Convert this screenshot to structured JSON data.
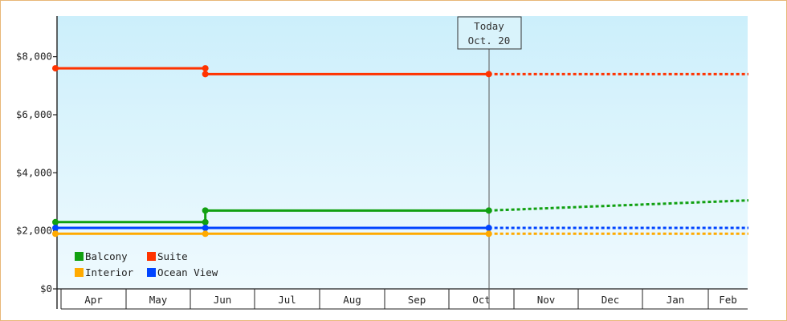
{
  "chart_data": {
    "type": "line",
    "title": "",
    "xlabel": "",
    "ylabel": "",
    "ylim": [
      0,
      9400
    ],
    "y_ticks": [
      {
        "value": 0,
        "label": "$0"
      },
      {
        "value": 2000,
        "label": "$2,000"
      },
      {
        "value": 4000,
        "label": "$4,000"
      },
      {
        "value": 6000,
        "label": "$6,000"
      },
      {
        "value": 8000,
        "label": "$8,000"
      }
    ],
    "months": [
      "Apr",
      "May",
      "Jun",
      "Jul",
      "Aug",
      "Sep",
      "Oct",
      "Nov",
      "Dec",
      "Jan",
      "Feb"
    ],
    "today": {
      "line1": "Today",
      "line2": "Oct. 20"
    },
    "legend_position": "bottom-left",
    "legend": [
      {
        "label": "Balcony",
        "color": "#11a011"
      },
      {
        "label": "Suite",
        "color": "#ff3300"
      },
      {
        "label": "Interior",
        "color": "#ffaa00"
      },
      {
        "label": "Ocean View",
        "color": "#0044ff"
      }
    ],
    "series": [
      {
        "name": "Suite",
        "color": "#ff3300",
        "actual": [
          [
            "Apr 1",
            7600
          ],
          [
            "Jun 8",
            7600
          ],
          [
            "Jun 8",
            7400
          ],
          [
            "Oct 20",
            7400
          ]
        ],
        "forecast": [
          [
            "Oct 20",
            7400
          ],
          [
            "Feb 28",
            7400
          ]
        ]
      },
      {
        "name": "Balcony",
        "color": "#11a011",
        "actual": [
          [
            "Apr 1",
            2300
          ],
          [
            "Jun 8",
            2300
          ],
          [
            "Jun 8",
            2700
          ],
          [
            "Oct 20",
            2700
          ]
        ],
        "forecast": [
          [
            "Oct 20",
            2700
          ],
          [
            "Feb 28",
            3050
          ]
        ]
      },
      {
        "name": "Ocean View",
        "color": "#0044ff",
        "actual": [
          [
            "Apr 1",
            2100
          ],
          [
            "Jun 8",
            2100
          ],
          [
            "Oct 20",
            2100
          ]
        ],
        "forecast": [
          [
            "Oct 20",
            2100
          ],
          [
            "Feb 28",
            2100
          ]
        ]
      },
      {
        "name": "Interior",
        "color": "#ffaa00",
        "actual": [
          [
            "Apr 1",
            1900
          ],
          [
            "Jun 8",
            1900
          ],
          [
            "Oct 20",
            1900
          ]
        ],
        "forecast": [
          [
            "Oct 20",
            1900
          ],
          [
            "Feb 28",
            1900
          ]
        ]
      }
    ]
  }
}
